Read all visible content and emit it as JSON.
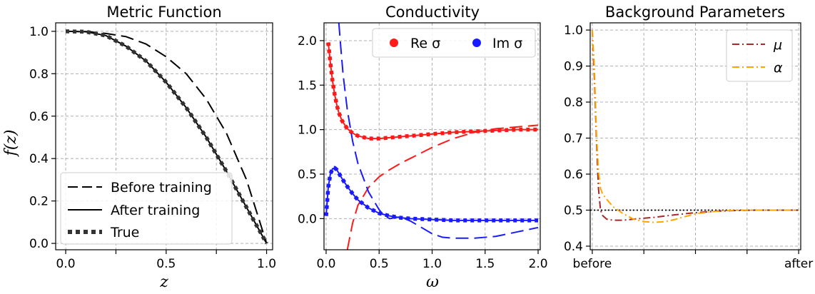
{
  "chart_data": [
    {
      "type": "line",
      "title": "Metric Function",
      "xlabel": "z",
      "ylabel": "f(z)",
      "xlim": [
        -0.05,
        1.03
      ],
      "ylim": [
        -0.03,
        1.04
      ],
      "xticks": [
        0.0,
        0.5,
        1.0
      ],
      "xtick_labels": [
        "0.0",
        "0.5",
        "1.0"
      ],
      "xticks_minor": [
        0.25,
        0.75
      ],
      "yticks": [
        0.0,
        0.2,
        0.4,
        0.6,
        0.8,
        1.0
      ],
      "ytick_labels": [
        "0.0",
        "0.2",
        "0.4",
        "0.6",
        "0.8",
        "1.0"
      ],
      "grid": true,
      "legend": {
        "position": "lower-left",
        "entries": [
          "Before training",
          "After training",
          "True"
        ]
      },
      "series": [
        {
          "name": "Before training",
          "style": "dashed",
          "color": "#000000",
          "x": [
            0.0,
            0.1,
            0.2,
            0.3,
            0.4,
            0.5,
            0.6,
            0.7,
            0.8,
            0.9,
            1.0
          ],
          "y": [
            1.0,
            0.999,
            0.99,
            0.975,
            0.94,
            0.88,
            0.8,
            0.68,
            0.52,
            0.3,
            0.0
          ]
        },
        {
          "name": "After training",
          "style": "solid",
          "color": "#000000",
          "x": [
            0.0,
            0.1,
            0.2,
            0.3,
            0.4,
            0.5,
            0.6,
            0.7,
            0.8,
            0.9,
            1.0
          ],
          "y": [
            1.0,
            0.998,
            0.98,
            0.93,
            0.86,
            0.76,
            0.64,
            0.5,
            0.34,
            0.17,
            0.0
          ]
        },
        {
          "name": "True",
          "style": "dotted",
          "color": "#333333",
          "x": [
            0.0,
            0.1,
            0.2,
            0.3,
            0.4,
            0.5,
            0.6,
            0.7,
            0.8,
            0.9,
            1.0
          ],
          "y": [
            1.0,
            0.998,
            0.98,
            0.93,
            0.86,
            0.76,
            0.64,
            0.5,
            0.34,
            0.17,
            0.0
          ]
        }
      ]
    },
    {
      "type": "line",
      "title": "Conductivity",
      "xlabel": "ω",
      "ylabel": "",
      "xlim": [
        -0.02,
        2.02
      ],
      "ylim": [
        -0.35,
        2.2
      ],
      "xticks": [
        0.0,
        0.5,
        1.0,
        1.5,
        2.0
      ],
      "xtick_labels": [
        "0.0",
        "0.5",
        "1.0",
        "1.5",
        "2.0"
      ],
      "yticks": [
        0.0,
        0.5,
        1.0,
        1.5,
        2.0
      ],
      "ytick_labels": [
        "0.0",
        "0.5",
        "1.0",
        "1.5",
        "2.0"
      ],
      "grid": true,
      "legend": {
        "position": "top-right",
        "entries": [
          "Re σ",
          "Im σ"
        ]
      },
      "series": [
        {
          "name": "Re σ",
          "role": "before",
          "style": "dashed",
          "color": "#ff1a1a",
          "x": [
            0.2,
            0.25,
            0.3,
            0.4,
            0.5,
            0.6,
            0.7,
            0.8,
            1.0,
            1.2,
            1.4,
            1.6,
            1.8,
            2.0
          ],
          "y": [
            -0.35,
            -0.05,
            0.15,
            0.35,
            0.47,
            0.55,
            0.62,
            0.68,
            0.8,
            0.9,
            0.97,
            1.01,
            1.03,
            1.05
          ]
        },
        {
          "name": "Re σ",
          "role": "after",
          "style": "solid",
          "color": "#ff1a1a",
          "x": [
            0.02,
            0.04,
            0.06,
            0.08,
            0.1,
            0.12,
            0.15,
            0.2,
            0.25,
            0.3,
            0.4,
            0.5,
            0.6,
            0.8,
            1.0,
            1.2,
            1.4,
            1.6,
            1.8,
            2.0
          ],
          "y": [
            1.98,
            1.75,
            1.55,
            1.4,
            1.28,
            1.19,
            1.1,
            1.01,
            0.96,
            0.93,
            0.9,
            0.9,
            0.91,
            0.93,
            0.95,
            0.97,
            0.98,
            0.99,
            1.0,
            1.0
          ]
        },
        {
          "name": "Re σ",
          "role": "true",
          "style": "dotted",
          "color": "#ff1a1a",
          "x": [
            0.02,
            0.04,
            0.06,
            0.08,
            0.1,
            0.12,
            0.15,
            0.2,
            0.25,
            0.3,
            0.4,
            0.5,
            0.6,
            0.8,
            1.0,
            1.2,
            1.4,
            1.6,
            1.8,
            2.0
          ],
          "y": [
            1.98,
            1.75,
            1.55,
            1.4,
            1.28,
            1.19,
            1.1,
            1.01,
            0.96,
            0.93,
            0.9,
            0.9,
            0.91,
            0.93,
            0.95,
            0.97,
            0.98,
            0.99,
            1.0,
            1.0
          ]
        },
        {
          "name": "Im σ",
          "role": "before",
          "style": "dashed",
          "color": "#1a1aff",
          "x": [
            0.12,
            0.14,
            0.16,
            0.2,
            0.25,
            0.3,
            0.4,
            0.5,
            0.55,
            0.6,
            0.7,
            0.8,
            0.9,
            1.0,
            1.1,
            1.2,
            1.4,
            1.6,
            1.8,
            2.0
          ],
          "y": [
            2.2,
            1.9,
            1.62,
            1.22,
            0.87,
            0.62,
            0.3,
            0.1,
            0.03,
            0.0,
            0.02,
            -0.03,
            -0.1,
            -0.17,
            -0.21,
            -0.22,
            -0.22,
            -0.2,
            -0.15,
            -0.1
          ]
        },
        {
          "name": "Im σ",
          "role": "after",
          "style": "solid",
          "color": "#1a1aff",
          "x": [
            0.0,
            0.02,
            0.04,
            0.06,
            0.08,
            0.1,
            0.12,
            0.15,
            0.2,
            0.25,
            0.3,
            0.4,
            0.5,
            0.6,
            0.7,
            0.8,
            1.0,
            1.2,
            1.4,
            1.6,
            1.8,
            2.0
          ],
          "y": [
            0.03,
            0.35,
            0.5,
            0.56,
            0.57,
            0.55,
            0.51,
            0.45,
            0.36,
            0.28,
            0.21,
            0.12,
            0.06,
            0.03,
            0.01,
            0.0,
            -0.01,
            -0.02,
            -0.02,
            -0.02,
            -0.02,
            -0.02
          ]
        },
        {
          "name": "Im σ",
          "role": "true",
          "style": "dotted",
          "color": "#1a1aff",
          "x": [
            0.0,
            0.02,
            0.04,
            0.06,
            0.08,
            0.1,
            0.12,
            0.15,
            0.2,
            0.25,
            0.3,
            0.4,
            0.5,
            0.6,
            0.7,
            0.8,
            1.0,
            1.2,
            1.4,
            1.6,
            1.8,
            2.0
          ],
          "y": [
            0.03,
            0.35,
            0.5,
            0.56,
            0.57,
            0.55,
            0.51,
            0.45,
            0.36,
            0.28,
            0.21,
            0.12,
            0.06,
            0.03,
            0.01,
            0.0,
            -0.01,
            -0.02,
            -0.02,
            -0.02,
            -0.02,
            -0.02
          ]
        }
      ]
    },
    {
      "type": "line",
      "title": "Background Parameters",
      "xlabel": "",
      "ylabel": "",
      "xlim": [
        -0.01,
        1.01
      ],
      "ylim": [
        0.39,
        1.02
      ],
      "xticks": [
        0.0,
        1.0
      ],
      "xtick_labels": [
        "before",
        "after"
      ],
      "xticks_minor": [
        0.25,
        0.5,
        0.75
      ],
      "yticks": [
        0.4,
        0.5,
        0.6,
        0.7,
        0.8,
        0.9,
        1.0
      ],
      "ytick_labels": [
        "0.4",
        "0.5",
        "0.6",
        "0.7",
        "0.8",
        "0.9",
        "1.0"
      ],
      "grid": true,
      "reference_line": {
        "y": 0.5,
        "style": "dotted",
        "color": "#000000"
      },
      "legend": {
        "position": "top-right",
        "entries": [
          "μ",
          "α"
        ]
      },
      "series": [
        {
          "name": "μ",
          "style": "dashdot",
          "color": "#a52a2a",
          "x": [
            0.0,
            0.01,
            0.02,
            0.03,
            0.04,
            0.05,
            0.07,
            0.1,
            0.15,
            0.2,
            0.3,
            0.4,
            0.5,
            0.6,
            0.7,
            0.8,
            0.9,
            1.0
          ],
          "y": [
            1.0,
            0.87,
            0.7,
            0.56,
            0.5,
            0.485,
            0.475,
            0.472,
            0.472,
            0.475,
            0.48,
            0.487,
            0.493,
            0.497,
            0.499,
            0.5,
            0.5,
            0.5
          ]
        },
        {
          "name": "α",
          "style": "dashdot",
          "color": "#ffa500",
          "x": [
            0.0,
            0.01,
            0.02,
            0.03,
            0.04,
            0.05,
            0.07,
            0.1,
            0.15,
            0.2,
            0.25,
            0.3,
            0.35,
            0.4,
            0.45,
            0.5,
            0.6,
            0.7,
            0.8,
            0.9,
            1.0
          ],
          "y": [
            1.0,
            0.9,
            0.72,
            0.61,
            0.56,
            0.545,
            0.53,
            0.51,
            0.49,
            0.475,
            0.468,
            0.466,
            0.468,
            0.474,
            0.482,
            0.49,
            0.497,
            0.5,
            0.5,
            0.5,
            0.5
          ]
        }
      ]
    }
  ]
}
